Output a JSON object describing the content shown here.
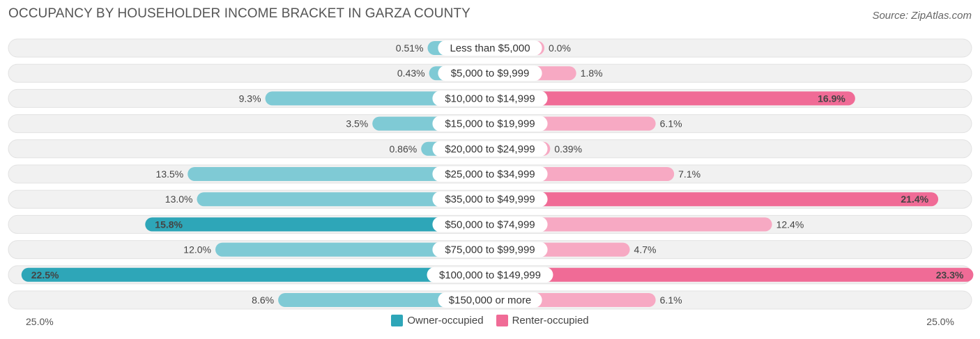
{
  "chart_data": {
    "type": "bar",
    "orientation": "horizontal-diverging",
    "title": "OCCUPANCY BY HOUSEHOLDER INCOME BRACKET IN GARZA COUNTY",
    "source": "Source: ZipAtlas.com",
    "categories": [
      "Less than $5,000",
      "$5,000 to $9,999",
      "$10,000 to $14,999",
      "$15,000 to $19,999",
      "$20,000 to $24,999",
      "$25,000 to $34,999",
      "$35,000 to $49,999",
      "$50,000 to $74,999",
      "$75,000 to $99,999",
      "$100,000 to $149,999",
      "$150,000 or more"
    ],
    "series": [
      {
        "name": "Owner-occupied",
        "color": "#4db3c4",
        "side": "left",
        "values": [
          0.51,
          0.43,
          9.3,
          3.5,
          0.86,
          13.5,
          13.0,
          15.8,
          12.0,
          22.5,
          8.6
        ],
        "labels": [
          "0.51%",
          "0.43%",
          "9.3%",
          "3.5%",
          "0.86%",
          "13.5%",
          "13.0%",
          "15.8%",
          "12.0%",
          "22.5%",
          "8.6%"
        ]
      },
      {
        "name": "Renter-occupied",
        "color": "#f07ea3",
        "side": "right",
        "values": [
          0.0,
          1.8,
          16.9,
          6.1,
          0.39,
          7.1,
          21.4,
          12.4,
          4.7,
          23.3,
          6.1
        ],
        "labels": [
          "0.0%",
          "1.8%",
          "16.9%",
          "6.1%",
          "0.39%",
          "7.1%",
          "21.4%",
          "12.4%",
          "4.7%",
          "23.3%",
          "6.1%"
        ]
      }
    ],
    "axis_max": 25.0,
    "axis_left_label": "25.0%",
    "axis_right_label": "25.0%",
    "legend_position": "bottom-center"
  }
}
